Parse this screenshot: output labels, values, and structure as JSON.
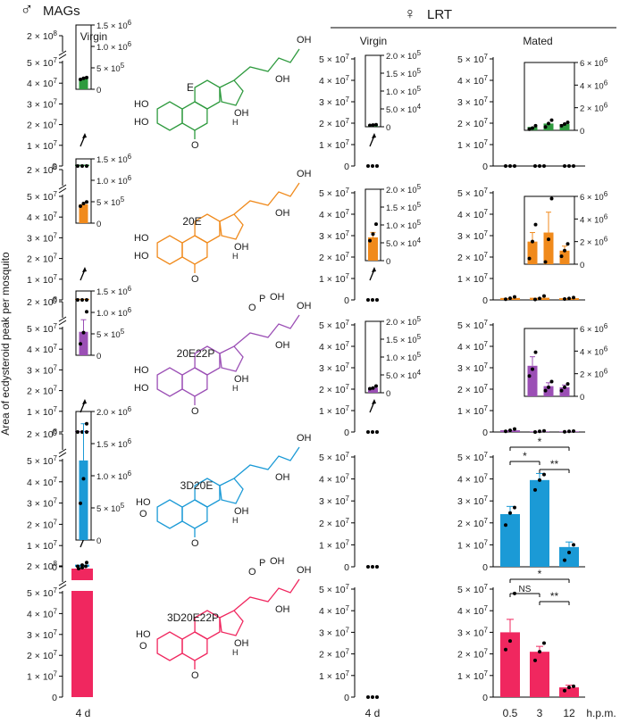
{
  "header": {
    "male_symbol": "♂",
    "male_title": "MAGs",
    "female_symbol": "♀",
    "female_title": "LRT",
    "virgin_label": "Virgin",
    "mated_label": "Mated"
  },
  "y_axis_label": "Area of ecdysteroid peak per mosquito",
  "x_labels": {
    "mags": "4 d",
    "lrt_virgin": "4 d",
    "mated": [
      "0.5",
      "3",
      "12"
    ],
    "unit": "h.p.m."
  },
  "rows": [
    {
      "name": "E",
      "color": "#2e9a3e"
    },
    {
      "name": "20E",
      "color": "#f08a1c"
    },
    {
      "name": "20E22P",
      "color": "#9b4fb5"
    },
    {
      "name": "3D20E",
      "color": "#1b9ad6"
    },
    {
      "name": "3D20E22P",
      "color": "#f0275f"
    }
  ],
  "structure_labels": {
    "OH": "OH",
    "O": "O",
    "P": "P",
    "H": "H"
  },
  "chart_data": [
    {
      "type": "bar",
      "panel": "MAGs virgin 4 d — E",
      "categories": [
        "4 d"
      ],
      "values": [
        650000
      ],
      "points": [
        0,
        0,
        0
      ],
      "yticks": [
        "0",
        "1 × 10^7",
        "2 × 10^7",
        "3 × 10^7",
        "4 × 10^7",
        "5 × 10^7",
        "2 × 10^8"
      ],
      "inset": {
        "values": [
          280000
        ],
        "points": [
          260000,
          290000,
          310000
        ],
        "yticks": [
          "0",
          "5 × 10^5",
          "1.0 × 10^6",
          "1.5 × 10^6"
        ],
        "ylim": [
          0,
          1700000
        ]
      }
    },
    {
      "type": "bar",
      "panel": "MAGs virgin 4 d — 20E",
      "categories": [
        "4 d"
      ],
      "values": [
        500000
      ],
      "points": [
        0,
        0,
        0
      ],
      "yticks": [
        "0",
        "1 × 10^7",
        "2 × 10^7",
        "3 × 10^7",
        "4 × 10^7",
        "5 × 10^7",
        "2 × 10^8"
      ],
      "inset": {
        "values": [
          500000
        ],
        "points": [
          450000,
          520000,
          560000
        ],
        "yticks": [
          "0",
          "5 × 10^5",
          "1.0 × 10^6",
          "1.5 × 10^6"
        ],
        "ylim": [
          0,
          1700000
        ]
      }
    },
    {
      "type": "bar",
      "panel": "MAGs virgin 4 d — 20E22P",
      "categories": [
        "4 d"
      ],
      "values": [
        400000
      ],
      "points": [
        0,
        0,
        0
      ],
      "yticks": [
        "0",
        "1 × 10^7",
        "2 × 10^7",
        "3 × 10^7",
        "4 × 10^7",
        "5 × 10^7",
        "2 × 10^8"
      ],
      "inset": {
        "values": [
          620000
        ],
        "points": [
          300000,
          600000,
          1150000
        ],
        "error": 320000,
        "yticks": [
          "0",
          "5 × 10^5",
          "1.0 × 10^6",
          "1.5 × 10^6"
        ],
        "ylim": [
          0,
          1700000
        ]
      }
    },
    {
      "type": "bar",
      "panel": "MAGs virgin 4 d — 3D20E",
      "categories": [
        "4 d"
      ],
      "values": [
        1000000
      ],
      "points": [
        200000,
        800000,
        2000000
      ],
      "yticks": [
        "0",
        "1 × 10^7",
        "2 × 10^7",
        "3 × 10^7",
        "4 × 10^7",
        "5 × 10^7",
        "2 × 10^8"
      ],
      "inset": {
        "values": [
          1300000
        ],
        "points": [
          600000,
          1000000,
          1900000
        ],
        "error": 600000,
        "yticks": [
          "0",
          "5 × 10^5",
          "1.0 × 10^6",
          "1.5 × 10^6",
          "2.0 × 10^6"
        ],
        "ylim": [
          0,
          2100000
        ]
      }
    },
    {
      "type": "bar",
      "panel": "MAGs virgin 4 d — 3D20E22P",
      "categories": [
        "4 d"
      ],
      "values": [
        185000000
      ],
      "points": [
        175000000,
        185000000,
        200000000
      ],
      "yticks": [
        "0",
        "1 × 10^7",
        "2 × 10^7",
        "3 × 10^7",
        "4 × 10^7",
        "5 × 10^7",
        "2 × 10^8"
      ]
    },
    {
      "type": "bar",
      "panel": "LRT virgin 4 d — E",
      "categories": [
        "4 d"
      ],
      "values": [
        80000
      ],
      "points": [
        0,
        0,
        0
      ],
      "yticks": [
        "0",
        "1 × 10^7",
        "2 × 10^7",
        "3 × 10^7",
        "4 × 10^7",
        "5 × 10^7"
      ],
      "inset": {
        "values": [
          5000
        ],
        "points": [
          4000,
          5000,
          6000
        ],
        "yticks": [
          "0",
          "5.0 × 10^4",
          "1.0 × 10^5",
          "1.5 × 10^5",
          "2.0 × 10^5"
        ],
        "ylim": [
          0,
          215000
        ]
      }
    },
    {
      "type": "bar",
      "panel": "LRT virgin 4 d — 20E",
      "categories": [
        "4 d"
      ],
      "values": [
        80000
      ],
      "points": [
        0,
        0,
        0
      ],
      "yticks": [
        "0",
        "1 × 10^7",
        "2 × 10^7",
        "3 × 10^7",
        "4 × 10^7",
        "5 × 10^7"
      ],
      "inset": {
        "values": [
          70000
        ],
        "points": [
          60000,
          80000,
          110000
        ],
        "error": 15000,
        "yticks": [
          "0",
          "5.0 × 10^4",
          "1.0 × 10^5",
          "1.5 × 10^5",
          "2.0 × 10^5"
        ],
        "ylim": [
          0,
          215000
        ]
      }
    },
    {
      "type": "bar",
      "panel": "LRT virgin 4 d — 20E22P",
      "categories": [
        "4 d"
      ],
      "values": [
        30000
      ],
      "points": [
        0,
        0,
        0
      ],
      "yticks": [
        "0",
        "1 × 10^7",
        "2 × 10^7",
        "3 × 10^7",
        "4 × 10^7",
        "5 × 10^7"
      ],
      "inset": {
        "values": [
          15000
        ],
        "points": [
          12000,
          14000,
          20000
        ],
        "yticks": [
          "0",
          "5.0 × 10^4",
          "1.0 × 10^5",
          "1.5 × 10^5",
          "2.0 × 10^5"
        ],
        "ylim": [
          0,
          215000
        ]
      }
    },
    {
      "type": "bar",
      "panel": "LRT virgin 4 d — 3D20E",
      "categories": [
        "4 d"
      ],
      "values": [
        0
      ],
      "points": [
        0,
        0,
        0
      ],
      "yticks": [
        "0",
        "1 × 10^7",
        "2 × 10^7",
        "3 × 10^7",
        "4 × 10^7",
        "5 × 10^7"
      ]
    },
    {
      "type": "bar",
      "panel": "LRT virgin 4 d — 3D20E22P",
      "categories": [
        "4 d"
      ],
      "values": [
        0
      ],
      "points": [
        0,
        0,
        0
      ],
      "yticks": [
        "0",
        "1 × 10^7",
        "2 × 10^7",
        "3 × 10^7",
        "4 × 10^7",
        "5 × 10^7"
      ]
    },
    {
      "type": "bar",
      "panel": "LRT mated — E",
      "categories": [
        "0.5",
        "3",
        "12"
      ],
      "values": [
        0,
        0,
        0
      ],
      "points": [
        [
          0,
          0,
          0
        ],
        [
          0,
          0,
          0
        ],
        [
          0,
          0,
          0
        ]
      ],
      "yticks": [
        "0",
        "1 × 10^7",
        "2 × 10^7",
        "3 × 10^7",
        "4 × 10^7",
        "5 × 10^7"
      ],
      "inset": {
        "values": [
          300000,
          600000,
          550000
        ],
        "points": [
          [
            100000,
            200000,
            400000
          ],
          [
            300000,
            600000,
            900000
          ],
          [
            400000,
            550000,
            700000
          ]
        ],
        "yticks": [
          "0",
          "2 × 10^6",
          "4 × 10^6",
          "6 × 10^6"
        ],
        "ylim": [
          0,
          6000000
        ]
      }
    },
    {
      "type": "bar",
      "panel": "LRT mated — 20E",
      "categories": [
        "0.5",
        "3",
        "12"
      ],
      "values": [
        900000,
        1000000,
        800000
      ],
      "points": [
        [
          300000,
          800000,
          1400000
        ],
        [
          200000,
          700000,
          1800000
        ],
        [
          400000,
          700000,
          1100000
        ]
      ],
      "yticks": [
        "0",
        "1 × 10^7",
        "2 × 10^7",
        "3 × 10^7",
        "4 × 10^7",
        "5 × 10^7"
      ],
      "inset": {
        "values": [
          2000000,
          2800000,
          1200000
        ],
        "points": [
          [
            500000,
            2000000,
            3500000
          ],
          [
            200000,
            2200000,
            5800000
          ],
          [
            700000,
            1200000,
            1800000
          ]
        ],
        "error": [
          800000,
          1800000,
          400000
        ],
        "yticks": [
          "0",
          "2 × 10^6",
          "4 × 10^6",
          "6 × 10^6"
        ],
        "ylim": [
          0,
          6000000
        ]
      }
    },
    {
      "type": "bar",
      "panel": "LRT mated — 20E22P",
      "categories": [
        "0.5",
        "3",
        "12"
      ],
      "values": [
        800000,
        300000,
        300000
      ],
      "points": [
        [
          300000,
          800000,
          1400000
        ],
        [
          0,
          300000,
          500000
        ],
        [
          100000,
          300000,
          400000
        ]
      ],
      "yticks": [
        "0",
        "1 × 10^7",
        "2 × 10^7",
        "3 × 10^7",
        "4 × 10^7",
        "5 × 10^7"
      ],
      "inset": {
        "values": [
          2700000,
          900000,
          800000
        ],
        "points": [
          [
            1800000,
            2400000,
            3900000
          ],
          [
            500000,
            800000,
            1300000
          ],
          [
            500000,
            800000,
            1100000
          ]
        ],
        "error": [
          800000,
          300000,
          200000
        ],
        "yticks": [
          "0",
          "2 × 10^6",
          "4 × 10^6",
          "6 × 10^6"
        ],
        "ylim": [
          0,
          6000000
        ]
      }
    },
    {
      "type": "bar",
      "panel": "LRT mated — 3D20E",
      "categories": [
        "0.5",
        "3",
        "12"
      ],
      "values": [
        24000000,
        39500000,
        9000000
      ],
      "points": [
        [
          19000000,
          24500000,
          27000000
        ],
        [
          35000000,
          39500000,
          42000000
        ],
        [
          3000000,
          6500000,
          10000000
        ]
      ],
      "error": [
        3500000,
        3000000,
        2300000
      ],
      "yticks": [
        "0",
        "1 × 10^7",
        "2 × 10^7",
        "3 × 10^7",
        "4 × 10^7",
        "5 × 10^7"
      ],
      "ylim": [
        0,
        50000000
      ],
      "significance": [
        {
          "from": "0.5",
          "to": "3",
          "label": "*"
        },
        {
          "from": "0.5",
          "to": "12",
          "label": "*"
        },
        {
          "from": "3",
          "to": "12",
          "label": "**"
        }
      ]
    },
    {
      "type": "bar",
      "panel": "LRT mated — 3D20E22P",
      "categories": [
        "0.5",
        "3",
        "12"
      ],
      "values": [
        30000000,
        21000000,
        4500000
      ],
      "points": [
        [
          22000000,
          26000000,
          48000000
        ],
        [
          17000000,
          21000000,
          25000000
        ],
        [
          3000000,
          4500000,
          5000000
        ]
      ],
      "error": [
        6000000,
        2500000,
        1000000
      ],
      "yticks": [
        "0",
        "1 × 10^7",
        "2 × 10^7",
        "3 × 10^7",
        "4 × 10^7",
        "5 × 10^7"
      ],
      "ylim": [
        0,
        50000000
      ],
      "significance": [
        {
          "from": "0.5",
          "to": "3",
          "label": "NS"
        },
        {
          "from": "0.5",
          "to": "12",
          "label": "*"
        },
        {
          "from": "3",
          "to": "12",
          "label": "**"
        }
      ]
    }
  ]
}
